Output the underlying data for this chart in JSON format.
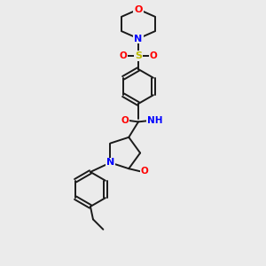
{
  "bg_color": "#ebebeb",
  "bond_color": "#1a1a1a",
  "colors": {
    "O": "#ff0000",
    "N": "#0000ff",
    "S": "#bbbb00",
    "H": "#008080",
    "C": "#1a1a1a"
  }
}
